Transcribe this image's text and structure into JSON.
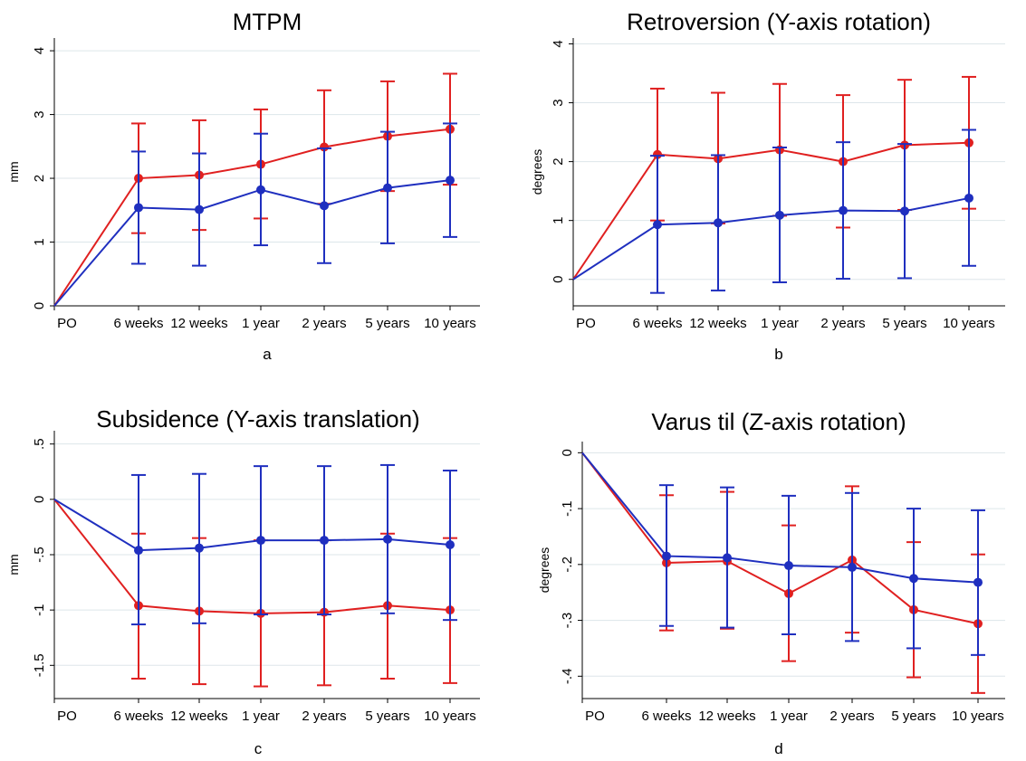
{
  "chart_data": [
    {
      "type": "line",
      "panel_label": "a",
      "title": "MTPM",
      "ylabel": "mm",
      "xlabel": "",
      "categories": [
        "PO",
        "6 weeks",
        "12 weeks",
        "1 year",
        "2 years",
        "5 years",
        "10 years"
      ],
      "ylim": [
        0,
        4.2
      ],
      "yticks": [
        0,
        1,
        2,
        3,
        4
      ],
      "ytick_labels": [
        "0",
        "1",
        "2",
        "3",
        "4"
      ],
      "grid": true,
      "series": [
        {
          "color": "#e02020",
          "values": [
            0,
            2.0,
            2.05,
            2.22,
            2.49,
            2.66,
            2.77
          ],
          "lower": [
            null,
            1.14,
            1.19,
            1.37,
            1.6,
            1.8,
            1.9
          ],
          "upper": [
            null,
            2.86,
            2.91,
            3.08,
            3.38,
            3.52,
            3.64
          ]
        },
        {
          "color": "#1f2fbf",
          "values": [
            0,
            1.54,
            1.51,
            1.82,
            1.57,
            1.85,
            1.97
          ],
          "lower": [
            null,
            0.66,
            0.63,
            0.95,
            0.67,
            0.98,
            1.08
          ],
          "upper": [
            null,
            2.42,
            2.39,
            2.7,
            2.47,
            2.73,
            2.86
          ]
        }
      ]
    },
    {
      "type": "line",
      "panel_label": "b",
      "title": "Retroversion (Y-axis rotation)",
      "ylabel": "degrees",
      "xlabel": "",
      "categories": [
        "PO",
        "6 weeks",
        "12 weeks",
        "1 year",
        "2 years",
        "5 years",
        "10 years"
      ],
      "ylim": [
        -0.45,
        4.1
      ],
      "yticks": [
        0,
        1,
        2,
        3,
        4
      ],
      "ytick_labels": [
        "0",
        "1",
        "2",
        "3",
        "4"
      ],
      "grid": true,
      "series": [
        {
          "color": "#e02020",
          "values": [
            0,
            2.12,
            2.05,
            2.2,
            2.0,
            2.28,
            2.32
          ],
          "lower": [
            null,
            1.0,
            0.95,
            1.08,
            0.88,
            1.18,
            1.2
          ],
          "upper": [
            null,
            3.24,
            3.17,
            3.32,
            3.13,
            3.39,
            3.44
          ]
        },
        {
          "color": "#1f2fbf",
          "values": [
            0,
            0.93,
            0.96,
            1.09,
            1.17,
            1.16,
            1.38
          ],
          "lower": [
            null,
            -0.23,
            -0.19,
            -0.05,
            0.01,
            0.02,
            0.23
          ],
          "upper": [
            null,
            2.1,
            2.11,
            2.24,
            2.33,
            2.3,
            2.54
          ]
        }
      ]
    },
    {
      "type": "line",
      "panel_label": "c",
      "title": "Subsidence (Y-axis translation)",
      "ylabel": "mm",
      "xlabel": "",
      "categories": [
        "PO",
        "6 weeks",
        "12 weeks",
        "1 year",
        "2 years",
        "5 years",
        "10 years"
      ],
      "ylim": [
        -1.8,
        0.62
      ],
      "yticks": [
        0.5,
        0,
        -0.5,
        -1,
        -1.5
      ],
      "ytick_labels": [
        ".5",
        "0",
        "-.5",
        "-1",
        "-1.5"
      ],
      "grid": true,
      "series": [
        {
          "color": "#e02020",
          "values": [
            0,
            -0.96,
            -1.01,
            -1.03,
            -1.02,
            -0.96,
            -1.0
          ],
          "lower": [
            null,
            -1.62,
            -1.67,
            -1.69,
            -1.68,
            -1.62,
            -1.66
          ],
          "upper": [
            null,
            -0.31,
            -0.35,
            -0.37,
            -0.37,
            -0.31,
            -0.35
          ]
        },
        {
          "color": "#1f2fbf",
          "values": [
            0,
            -0.46,
            -0.44,
            -0.37,
            -0.37,
            -0.36,
            -0.41
          ],
          "lower": [
            null,
            -1.13,
            -1.12,
            -1.04,
            -1.04,
            -1.03,
            -1.09
          ],
          "upper": [
            null,
            0.22,
            0.23,
            0.3,
            0.3,
            0.31,
            0.26
          ]
        }
      ]
    },
    {
      "type": "line",
      "panel_label": "d",
      "title": "Varus til (Z-axis rotation)",
      "ylabel": "degrees",
      "xlabel": "",
      "categories": [
        "PO",
        "6 weeks",
        "12 weeks",
        "1 year",
        "2 years",
        "5 years",
        "10 years"
      ],
      "ylim": [
        -0.44,
        0.02
      ],
      "yticks": [
        0,
        -0.1,
        -0.2,
        -0.3,
        -0.4
      ],
      "ytick_labels": [
        "0",
        "-.1",
        "-.2",
        "-.3",
        "-.4"
      ],
      "grid": true,
      "series": [
        {
          "color": "#e02020",
          "values": [
            0,
            -0.197,
            -0.194,
            -0.252,
            -0.192,
            -0.281,
            -0.306
          ],
          "lower": [
            null,
            -0.318,
            -0.315,
            -0.373,
            -0.322,
            -0.402,
            -0.43
          ],
          "upper": [
            null,
            -0.076,
            -0.07,
            -0.13,
            -0.06,
            -0.16,
            -0.182
          ]
        },
        {
          "color": "#1f2fbf",
          "values": [
            0,
            -0.185,
            -0.188,
            -0.202,
            -0.205,
            -0.225,
            -0.232
          ],
          "lower": [
            null,
            -0.31,
            -0.313,
            -0.325,
            -0.337,
            -0.35,
            -0.362
          ],
          "upper": [
            null,
            -0.058,
            -0.062,
            -0.077,
            -0.072,
            -0.1,
            -0.103
          ]
        }
      ]
    }
  ]
}
